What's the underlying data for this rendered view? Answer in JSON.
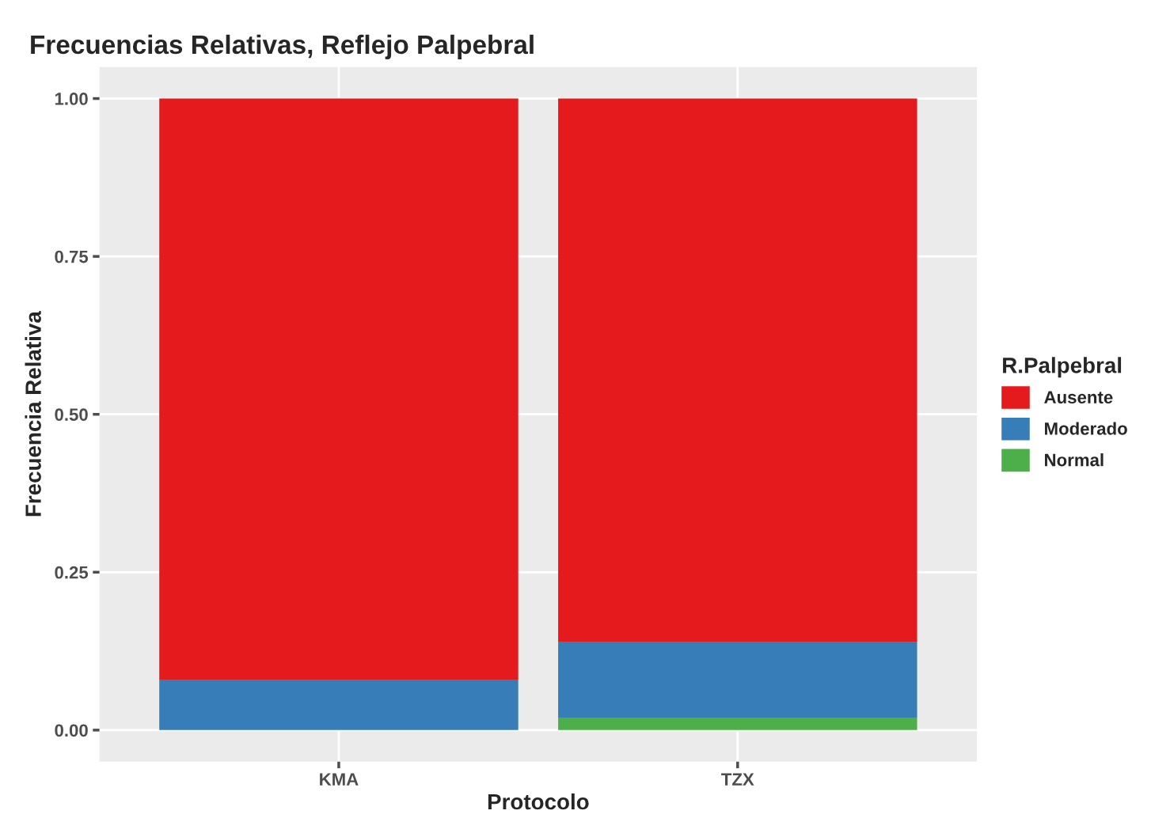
{
  "chart_data": {
    "type": "bar",
    "title": "Frecuencias Relativas, Reflejo Palpebral",
    "xlabel": "Protocolo",
    "ylabel": "Frecuencia Relativa",
    "legend_title": "R.Palpebral",
    "categories": [
      "KMA",
      "TZX"
    ],
    "stacked": true,
    "series": [
      {
        "name": "Normal",
        "color": "#4daf4a",
        "values": [
          0,
          0.02
        ]
      },
      {
        "name": "Moderado",
        "color": "#377eb8",
        "values": [
          0.08,
          0.12
        ]
      },
      {
        "name": "Ausente",
        "color": "#e41a1c",
        "values": [
          0.92,
          0.86
        ]
      }
    ],
    "ylim": [
      -0.05,
      1.05
    ],
    "yticks": [
      {
        "value": 0,
        "label": "0.00"
      },
      {
        "value": 0.25,
        "label": "0.25"
      },
      {
        "value": 0.5,
        "label": "0.50"
      },
      {
        "value": 0.75,
        "label": "0.75"
      },
      {
        "value": 1,
        "label": "1.00"
      }
    ],
    "grid": true,
    "legend": "right"
  }
}
